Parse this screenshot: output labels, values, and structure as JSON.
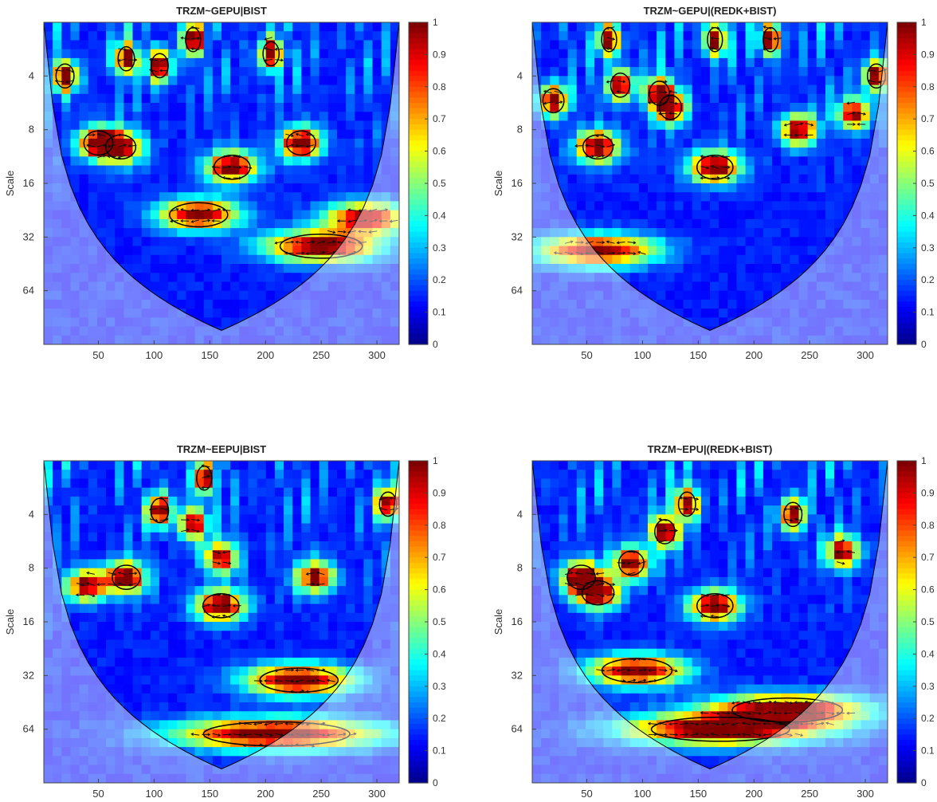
{
  "chart_data": [
    {
      "type": "heatmap",
      "title": "TRZM~GEPU|BIST",
      "xlabel": "",
      "ylabel": "Scale",
      "x_ticks": [
        50,
        100,
        150,
        200,
        250,
        300
      ],
      "y_ticks": [
        "4",
        "8",
        "16",
        "32",
        "64"
      ],
      "xlim": [
        1,
        320
      ],
      "ylim_scale": [
        2,
        128
      ],
      "colorbar_ticks": [
        "0",
        "0.1",
        "0.2",
        "0.3",
        "0.4",
        "0.5",
        "0.6",
        "0.7",
        "0.8",
        "0.9",
        "1"
      ],
      "colorbar_range": [
        0,
        1
      ],
      "colormap": "jet",
      "cone_of_influence": true,
      "high_coherence_regions": [
        {
          "x": 20,
          "scale": 4,
          "value": 0.92
        },
        {
          "x": 50,
          "scale": 9.5,
          "value": 0.95
        },
        {
          "x": 70,
          "scale": 10,
          "value": 0.9
        },
        {
          "x": 75,
          "scale": 3.2,
          "value": 0.93
        },
        {
          "x": 105,
          "scale": 3.5,
          "value": 0.95
        },
        {
          "x": 135,
          "scale": 2.5,
          "value": 0.96
        },
        {
          "x": 170,
          "scale": 13,
          "value": 0.93
        },
        {
          "x": 205,
          "scale": 3,
          "value": 0.97
        },
        {
          "x": 232,
          "scale": 9.5,
          "value": 0.97
        },
        {
          "x": 140,
          "scale": 24,
          "value": 0.9
        },
        {
          "x": 250,
          "scale": 36,
          "value": 0.92
        },
        {
          "x": 290,
          "scale": 25,
          "value": 0.85
        }
      ]
    },
    {
      "type": "heatmap",
      "title": "TRZM~GEPU|(REDK+BIST)",
      "xlabel": "",
      "ylabel": "Scale",
      "x_ticks": [
        50,
        100,
        150,
        200,
        250,
        300
      ],
      "y_ticks": [
        "4",
        "8",
        "16",
        "32",
        "64"
      ],
      "xlim": [
        1,
        320
      ],
      "ylim_scale": [
        2,
        128
      ],
      "colorbar_ticks": [
        "0",
        "0.1",
        "0.2",
        "0.3",
        "0.4",
        "0.5",
        "0.6",
        "0.7",
        "0.8",
        "0.9",
        "1"
      ],
      "colorbar_range": [
        0,
        1
      ],
      "colormap": "jet",
      "cone_of_influence": true,
      "high_coherence_regions": [
        {
          "x": 20,
          "scale": 5.5,
          "value": 0.9
        },
        {
          "x": 60,
          "scale": 10,
          "value": 0.96
        },
        {
          "x": 70,
          "scale": 2.5,
          "value": 0.95
        },
        {
          "x": 80,
          "scale": 4.5,
          "value": 0.92
        },
        {
          "x": 115,
          "scale": 5,
          "value": 0.93
        },
        {
          "x": 125,
          "scale": 6,
          "value": 0.94
        },
        {
          "x": 165,
          "scale": 13,
          "value": 0.96
        },
        {
          "x": 165,
          "scale": 2.5,
          "value": 0.95
        },
        {
          "x": 215,
          "scale": 2.5,
          "value": 0.93
        },
        {
          "x": 240,
          "scale": 8,
          "value": 0.88
        },
        {
          "x": 290,
          "scale": 6.5,
          "value": 0.85
        },
        {
          "x": 310,
          "scale": 4,
          "value": 0.9
        },
        {
          "x": 60,
          "scale": 38,
          "value": 0.88
        }
      ]
    },
    {
      "type": "heatmap",
      "title": "TRZM~EEPU|BIST",
      "xlabel": "",
      "ylabel": "Scale",
      "x_ticks": [
        50,
        100,
        150,
        200,
        250,
        300
      ],
      "y_ticks": [
        "4",
        "8",
        "16",
        "32",
        "64"
      ],
      "xlim": [
        1,
        320
      ],
      "ylim_scale": [
        2,
        128
      ],
      "colorbar_ticks": [
        "0",
        "0.1",
        "0.2",
        "0.3",
        "0.4",
        "0.5",
        "0.6",
        "0.7",
        "0.8",
        "0.9",
        "1"
      ],
      "colorbar_range": [
        0,
        1
      ],
      "colormap": "jet",
      "cone_of_influence": true,
      "high_coherence_regions": [
        {
          "x": 40,
          "scale": 10,
          "value": 0.88
        },
        {
          "x": 75,
          "scale": 9,
          "value": 0.94
        },
        {
          "x": 105,
          "scale": 3.8,
          "value": 0.93
        },
        {
          "x": 145,
          "scale": 2.5,
          "value": 0.92
        },
        {
          "x": 135,
          "scale": 4.5,
          "value": 0.88
        },
        {
          "x": 160,
          "scale": 7,
          "value": 0.85
        },
        {
          "x": 160,
          "scale": 13,
          "value": 0.93
        },
        {
          "x": 245,
          "scale": 9,
          "value": 0.85
        },
        {
          "x": 310,
          "scale": 3.5,
          "value": 0.9
        },
        {
          "x": 230,
          "scale": 34,
          "value": 0.92
        },
        {
          "x": 210,
          "scale": 68,
          "value": 0.95
        }
      ]
    },
    {
      "type": "heatmap",
      "title": "TRZM~EPU|(REDK+BIST)",
      "xlabel": "",
      "ylabel": "Scale",
      "x_ticks": [
        50,
        100,
        150,
        200,
        250,
        300
      ],
      "y_ticks": [
        "4",
        "8",
        "16",
        "32",
        "64"
      ],
      "xlim": [
        1,
        320
      ],
      "ylim_scale": [
        2,
        128
      ],
      "colorbar_ticks": [
        "0",
        "0.1",
        "0.2",
        "0.3",
        "0.4",
        "0.5",
        "0.6",
        "0.7",
        "0.8",
        "0.9",
        "1"
      ],
      "colorbar_range": [
        0,
        1
      ],
      "colormap": "jet",
      "cone_of_influence": true,
      "high_coherence_regions": [
        {
          "x": 45,
          "scale": 9,
          "value": 0.96
        },
        {
          "x": 60,
          "scale": 11,
          "value": 0.93
        },
        {
          "x": 90,
          "scale": 7.5,
          "value": 0.94
        },
        {
          "x": 120,
          "scale": 5,
          "value": 0.96
        },
        {
          "x": 140,
          "scale": 3.5,
          "value": 0.93
        },
        {
          "x": 165,
          "scale": 13,
          "value": 0.95
        },
        {
          "x": 235,
          "scale": 4,
          "value": 0.9
        },
        {
          "x": 280,
          "scale": 6.5,
          "value": 0.88
        },
        {
          "x": 95,
          "scale": 30,
          "value": 0.9
        },
        {
          "x": 170,
          "scale": 64,
          "value": 0.97
        },
        {
          "x": 230,
          "scale": 50,
          "value": 0.95
        }
      ]
    }
  ]
}
